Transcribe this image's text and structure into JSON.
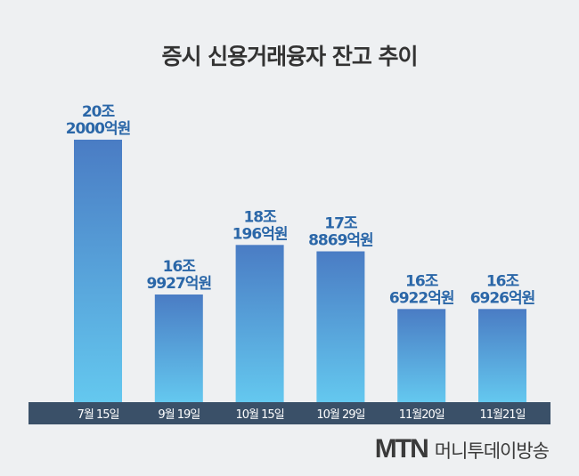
{
  "chart_data": {
    "type": "bar",
    "title": "증시 신용거래융자 잔고 추이",
    "categories": [
      "7월 15일",
      "9월 19일",
      "10월 15일",
      "10월 29일",
      "11월20일",
      "11월21일"
    ],
    "values": [
      202000,
      169927,
      180196,
      178869,
      166922,
      166926
    ],
    "unit": "억원",
    "data_labels": [
      [
        "20조",
        "2000억원"
      ],
      [
        "16조",
        "9927억원"
      ],
      [
        "18조",
        "196억원"
      ],
      [
        "17조",
        "8869억원"
      ],
      [
        "16조",
        "6922억원"
      ],
      [
        "16조",
        "6926억원"
      ]
    ],
    "xlabel": "",
    "ylabel": "",
    "ylim": [
      155000,
      202000
    ],
    "grid": false,
    "colors": {
      "bar_top": "#4a7cc4",
      "bar_bottom": "#64c8ef",
      "label": "#2b67a8",
      "axis_band": "#3a5068"
    }
  },
  "brand": {
    "mark": "MTN",
    "name": "머니투데이방송"
  }
}
